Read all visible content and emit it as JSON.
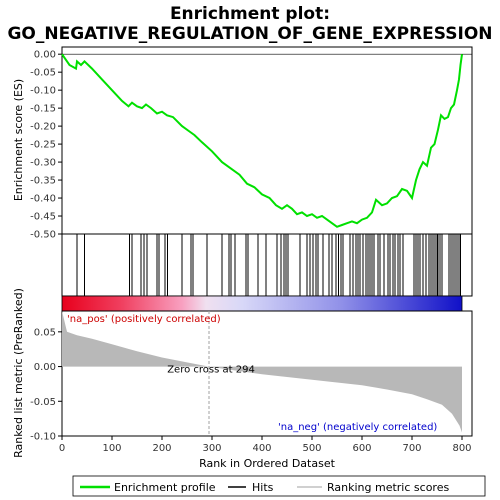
{
  "chart_data": {
    "type": "line",
    "title_line1": "Enrichment plot:",
    "title_line2": "GO_NEGATIVE_REGULATION_OF_GENE_EXPRESSION",
    "es_panel": {
      "ylabel": "Enrichment score (ES)",
      "ylim": [
        -0.5,
        0.02
      ],
      "yticks": [
        "0.00",
        "-0.05",
        "-0.10",
        "-0.15",
        "-0.20",
        "-0.25",
        "-0.30",
        "-0.35",
        "-0.40",
        "-0.45",
        "-0.50"
      ],
      "line_color": "#00e000",
      "points": [
        [
          0,
          0.0
        ],
        [
          15,
          -0.03
        ],
        [
          28,
          -0.04
        ],
        [
          30,
          -0.02
        ],
        [
          38,
          -0.03
        ],
        [
          45,
          -0.02
        ],
        [
          60,
          -0.04
        ],
        [
          80,
          -0.07
        ],
        [
          100,
          -0.1
        ],
        [
          120,
          -0.13
        ],
        [
          133,
          -0.145
        ],
        [
          140,
          -0.135
        ],
        [
          150,
          -0.145
        ],
        [
          160,
          -0.15
        ],
        [
          168,
          -0.14
        ],
        [
          178,
          -0.15
        ],
        [
          190,
          -0.165
        ],
        [
          200,
          -0.16
        ],
        [
          210,
          -0.17
        ],
        [
          222,
          -0.175
        ],
        [
          240,
          -0.2
        ],
        [
          255,
          -0.215
        ],
        [
          265,
          -0.225
        ],
        [
          280,
          -0.245
        ],
        [
          300,
          -0.27
        ],
        [
          320,
          -0.3
        ],
        [
          340,
          -0.32
        ],
        [
          355,
          -0.335
        ],
        [
          370,
          -0.36
        ],
        [
          385,
          -0.37
        ],
        [
          400,
          -0.39
        ],
        [
          415,
          -0.4
        ],
        [
          428,
          -0.42
        ],
        [
          440,
          -0.43
        ],
        [
          450,
          -0.42
        ],
        [
          460,
          -0.43
        ],
        [
          470,
          -0.445
        ],
        [
          480,
          -0.44
        ],
        [
          490,
          -0.45
        ],
        [
          500,
          -0.445
        ],
        [
          510,
          -0.455
        ],
        [
          520,
          -0.45
        ],
        [
          530,
          -0.46
        ],
        [
          540,
          -0.47
        ],
        [
          550,
          -0.48
        ],
        [
          560,
          -0.475
        ],
        [
          570,
          -0.47
        ],
        [
          580,
          -0.465
        ],
        [
          590,
          -0.47
        ],
        [
          600,
          -0.46
        ],
        [
          610,
          -0.455
        ],
        [
          620,
          -0.44
        ],
        [
          628,
          -0.405
        ],
        [
          640,
          -0.42
        ],
        [
          650,
          -0.415
        ],
        [
          660,
          -0.4
        ],
        [
          670,
          -0.395
        ],
        [
          680,
          -0.375
        ],
        [
          690,
          -0.38
        ],
        [
          700,
          -0.4
        ],
        [
          708,
          -0.35
        ],
        [
          715,
          -0.32
        ],
        [
          722,
          -0.3
        ],
        [
          730,
          -0.31
        ],
        [
          738,
          -0.26
        ],
        [
          745,
          -0.25
        ],
        [
          752,
          -0.21
        ],
        [
          758,
          -0.17
        ],
        [
          765,
          -0.18
        ],
        [
          772,
          -0.175
        ],
        [
          778,
          -0.15
        ],
        [
          784,
          -0.14
        ],
        [
          790,
          -0.1
        ],
        [
          794,
          -0.07
        ],
        [
          797,
          -0.03
        ],
        [
          800,
          0.0
        ]
      ],
      "zero_line": 0.0
    },
    "hits_panel": {
      "hit_positions": [
        30,
        45,
        135,
        140,
        158,
        164,
        170,
        190,
        194,
        206,
        211,
        240,
        258,
        262,
        290,
        320,
        334,
        338,
        346,
        368,
        372,
        392,
        408,
        430,
        438,
        444,
        448,
        452,
        476,
        490,
        496,
        502,
        508,
        512,
        522,
        534,
        540,
        548,
        553,
        558,
        562,
        576,
        582,
        588,
        592,
        596,
        602,
        608,
        612,
        616,
        620,
        624,
        632,
        636,
        644,
        652,
        656,
        662,
        666,
        672,
        676,
        682,
        704,
        708,
        712,
        716,
        722,
        728,
        734,
        738,
        742,
        746,
        750,
        752,
        756,
        760,
        774,
        778,
        782,
        786,
        790,
        794,
        797
      ]
    },
    "rank_panel": {
      "ylabel": "Ranked list metric (PreRanked)",
      "ylim": [
        -0.1,
        0.08
      ],
      "yticks": [
        "0.05",
        "0.00",
        "-0.05",
        "-0.10"
      ],
      "zero_cross": 294,
      "zero_cross_label": "Zero cross at 294",
      "pos_label": "'na_pos' (positively correlated)",
      "neg_label": "'na_neg' (negatively correlated)",
      "metric_points": [
        [
          0,
          0.08
        ],
        [
          10,
          0.05
        ],
        [
          30,
          0.045
        ],
        [
          60,
          0.04
        ],
        [
          100,
          0.032
        ],
        [
          150,
          0.022
        ],
        [
          200,
          0.013
        ],
        [
          250,
          0.006
        ],
        [
          294,
          0.0
        ],
        [
          350,
          -0.006
        ],
        [
          400,
          -0.011
        ],
        [
          450,
          -0.015
        ],
        [
          500,
          -0.019
        ],
        [
          550,
          -0.023
        ],
        [
          600,
          -0.027
        ],
        [
          650,
          -0.033
        ],
        [
          700,
          -0.04
        ],
        [
          730,
          -0.047
        ],
        [
          760,
          -0.055
        ],
        [
          780,
          -0.068
        ],
        [
          795,
          -0.085
        ],
        [
          800,
          -0.095
        ]
      ]
    },
    "xaxis": {
      "xlabel": "Rank in Ordered Dataset",
      "xlim": [
        0,
        820
      ],
      "xticks": [
        "0",
        "100",
        "200",
        "300",
        "400",
        "500",
        "600",
        "700",
        "800"
      ]
    },
    "legend": {
      "items": [
        {
          "label": "Enrichment profile",
          "color": "#00e000"
        },
        {
          "label": "Hits",
          "color": "#000000"
        },
        {
          "label": "Ranking metric scores",
          "color": "#c0c0c0"
        }
      ]
    },
    "colors": {
      "metric_fill": "#b8b8b8",
      "zero_cross_line": "#a0a0a0",
      "pos_label": "#cc0000",
      "neg_label": "#0000cc",
      "bar_red": "#e8001c",
      "bar_blue": "#2020d0"
    }
  }
}
